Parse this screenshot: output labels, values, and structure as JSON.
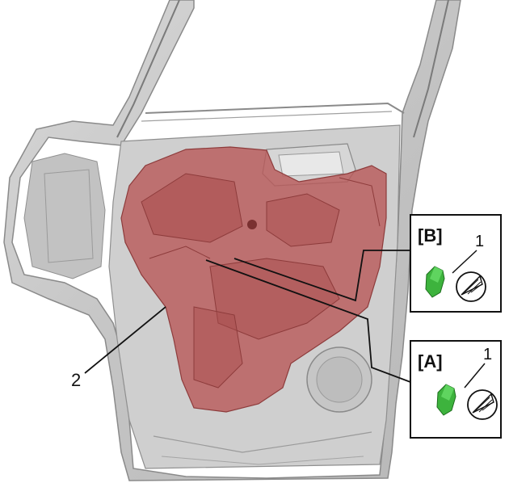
{
  "callouts": {
    "inset_b_label": "[B]",
    "inset_b_number": "1",
    "inset_a_label": "[A]",
    "inset_a_number": "1",
    "part_number": "2"
  },
  "colors": {
    "door_metal": "#c9c9c9",
    "door_edge": "#8a8a8a",
    "insulator_red": "#b85a5a",
    "clip_green": "#3db33d",
    "background": "#ffffff"
  },
  "icons": {
    "clip": "green-clip-icon",
    "removal_tool": "clip-remover-tool-icon"
  }
}
